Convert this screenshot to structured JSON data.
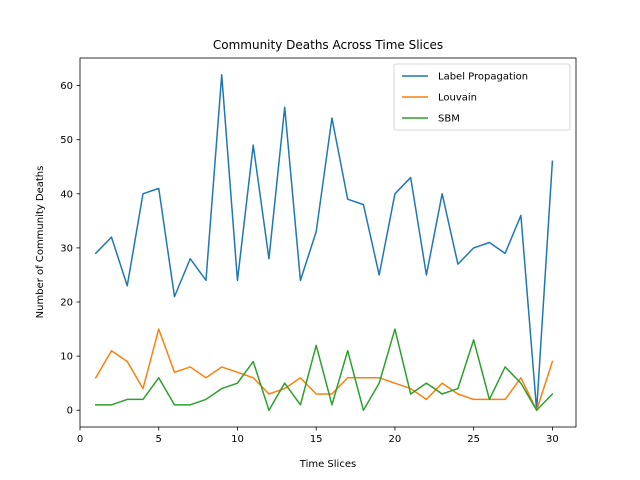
{
  "chart_data": {
    "type": "line",
    "title": "Community Deaths Across Time Slices",
    "xlabel": "Time Slices",
    "ylabel": "Number of Community Deaths",
    "xlim": [
      0,
      31.5
    ],
    "ylim": [
      -3.1,
      65.1
    ],
    "xticks": [
      0,
      5,
      10,
      15,
      20,
      25,
      30
    ],
    "yticks": [
      0,
      10,
      20,
      30,
      40,
      50,
      60
    ],
    "grid": false,
    "legend_position": "upper-right",
    "x": [
      1,
      2,
      3,
      4,
      5,
      6,
      7,
      8,
      9,
      10,
      11,
      12,
      13,
      14,
      15,
      16,
      17,
      18,
      19,
      20,
      21,
      22,
      23,
      24,
      25,
      26,
      27,
      28,
      29,
      30
    ],
    "series": [
      {
        "name": "Label Propagation",
        "color": "#1f77b4",
        "values": [
          29,
          32,
          23,
          40,
          41,
          21,
          28,
          24,
          62,
          24,
          49,
          28,
          56,
          24,
          33,
          54,
          39,
          38,
          25,
          40,
          43,
          25,
          40,
          27,
          30,
          31,
          29,
          36,
          0,
          46
        ]
      },
      {
        "name": "Louvain",
        "color": "#ff7f0e",
        "values": [
          6,
          11,
          9,
          4,
          15,
          7,
          8,
          6,
          8,
          7,
          6,
          3,
          4,
          6,
          3,
          3,
          6,
          6,
          6,
          5,
          4,
          2,
          5,
          3,
          2,
          2,
          2,
          6,
          0,
          9
        ]
      },
      {
        "name": "SBM",
        "color": "#2ca02c",
        "values": [
          1,
          1,
          2,
          2,
          6,
          1,
          1,
          2,
          4,
          5,
          9,
          0,
          5,
          1,
          12,
          1,
          11,
          0,
          5,
          15,
          3,
          5,
          3,
          4,
          13,
          2,
          8,
          5,
          0,
          3
        ]
      }
    ]
  }
}
